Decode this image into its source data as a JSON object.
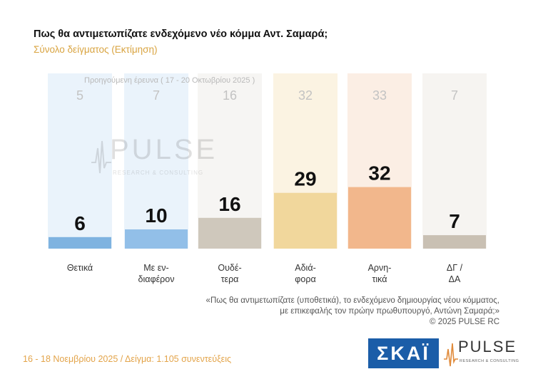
{
  "header": {
    "title": "Πως θα αντιμετωπίζατε ενδεχόμενο νέο κόμμα Αντ. Σαμαρά;",
    "subtitle": "Σύνολο δείγματος (Εκτίμηση)"
  },
  "chart_data": {
    "type": "bar",
    "categories": [
      "Θετικά",
      "Με εν-\nδιαφέρον",
      "Ουδέ-\nτερα",
      "Αδιά-\nφορα",
      "Αρνη-\nτικά",
      "ΔΓ /\nΔΑ"
    ],
    "series": [
      {
        "name": "16 - 18 Νοεμβρίου 2025",
        "values": [
          6,
          10,
          16,
          29,
          32,
          7
        ]
      },
      {
        "name": "Προηγούμενη έρευνα ( 17 - 20 Οκτωβρίου 2025 )",
        "values": [
          5,
          7,
          16,
          32,
          33,
          7
        ]
      }
    ],
    "previous_label": "Προηγούμενη έρευνα ( 17 - 20 Οκτωβρίου 2025 )",
    "ylim": [
      0,
      100
    ],
    "colors": [
      "#7fb3e0",
      "#92bfe8",
      "#cfc8bc",
      "#f1d79c",
      "#f2b78c",
      "#c9c0b3"
    ],
    "bg_colors": [
      "#eaf3fb",
      "#eaf3fb",
      "#f6f5f3",
      "#fbf3e2",
      "#fbeee4",
      "#f6f4f1"
    ]
  },
  "note": {
    "line1": "«Πως θα αντιμετωπίζατε (υποθετικά), το ενδεχόμενο δημιουργίας νέου κόμματος,",
    "line2": "με επικεφαλής τον πρώην πρωθυπουργό, Αντώνη Σαμαρά;»",
    "line3": "©  2025  PULSE RC"
  },
  "footer": {
    "text": "16 - 18 Νοεμβρίου 2025  /  Δείγμα:  1.105 συνεντεύξεις"
  },
  "logos": {
    "skai": "ΣΚΑΪ",
    "pulse": "PULSE",
    "pulse_sub": "RESEARCH & CONSULTING"
  },
  "watermark": {
    "word": "PULSE",
    "sub": "RESEARCH & CONSULTING"
  }
}
